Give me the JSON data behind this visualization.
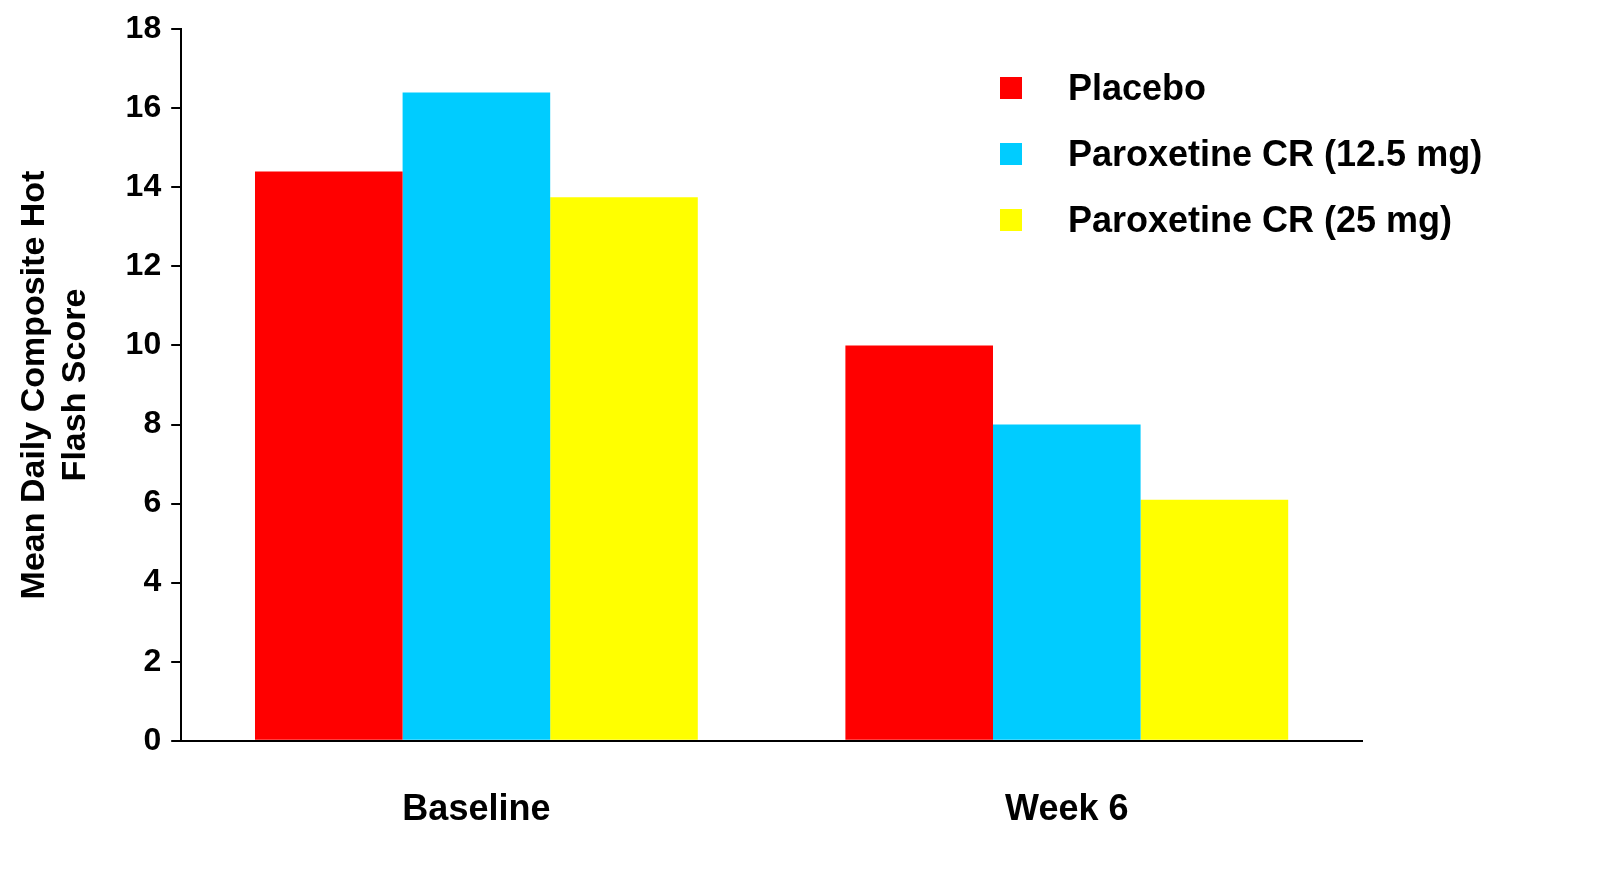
{
  "chart_data": {
    "type": "bar",
    "ylabel": "Mean Daily Composite Hot Flash Score",
    "categories": [
      "Baseline",
      "Week 6"
    ],
    "series": [
      {
        "name": "Placebo",
        "color": "#ff0000",
        "values": [
          14.4,
          10.0
        ]
      },
      {
        "name": "Paroxetine CR (12.5 mg)",
        "color": "#00ccff",
        "values": [
          16.4,
          8.0
        ]
      },
      {
        "name": "Paroxetine CR (25 mg)",
        "color": "#ffff00",
        "values": [
          13.75,
          6.1
        ]
      }
    ],
    "ylim": [
      0,
      18
    ],
    "yticks": [
      0,
      2,
      4,
      6,
      8,
      10,
      12,
      14,
      16,
      18
    ],
    "grid": false,
    "legend": "top right"
  }
}
